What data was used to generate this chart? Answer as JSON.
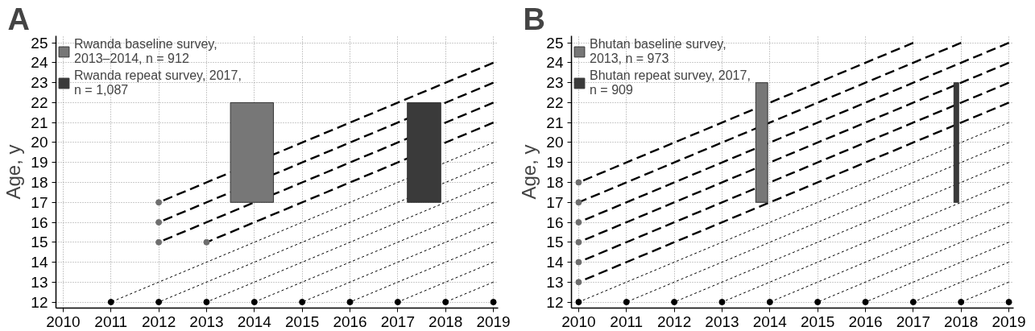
{
  "chart_data": [
    {
      "type": "line",
      "title": "A",
      "ylabel": "Age, y",
      "xlim": [
        2009.85,
        2019.1
      ],
      "ylim": [
        11.7,
        25.35
      ],
      "xticks": [
        2010,
        2011,
        2012,
        2013,
        2014,
        2015,
        2016,
        2017,
        2018,
        2019
      ],
      "yticks": [
        12,
        13,
        14,
        15,
        16,
        17,
        18,
        19,
        20,
        21,
        22,
        23,
        24,
        25
      ],
      "grid": true,
      "legend": "top left",
      "series": [
        {
          "color": "#000000",
          "line_style": "dashed",
          "x": [
            2012,
            2019
          ],
          "values": [
            17,
            24
          ]
        },
        {
          "color": "#000000",
          "line_style": "dashed",
          "x": [
            2012,
            2019
          ],
          "values": [
            16,
            23
          ]
        },
        {
          "color": "#000000",
          "line_style": "dashed",
          "x": [
            2012,
            2019
          ],
          "values": [
            15,
            22
          ]
        },
        {
          "color": "#000000",
          "line_style": "dashed",
          "x": [
            2013,
            2019
          ],
          "values": [
            15,
            21
          ]
        },
        {
          "color": "#000000",
          "line_style": "dotted",
          "x": [
            2011,
            2019
          ],
          "values": [
            12,
            20
          ]
        },
        {
          "color": "#000000",
          "line_style": "dotted",
          "x": [
            2012,
            2019
          ],
          "values": [
            12,
            19
          ]
        },
        {
          "color": "#000000",
          "line_style": "dotted",
          "x": [
            2013,
            2019
          ],
          "values": [
            12,
            18
          ]
        },
        {
          "color": "#000000",
          "line_style": "dotted",
          "x": [
            2014,
            2019
          ],
          "values": [
            12,
            17
          ]
        },
        {
          "color": "#000000",
          "line_style": "dotted",
          "x": [
            2015,
            2019
          ],
          "values": [
            12,
            16
          ]
        },
        {
          "color": "#000000",
          "line_style": "dotted",
          "x": [
            2016,
            2019
          ],
          "values": [
            12,
            15
          ]
        },
        {
          "color": "#000000",
          "line_style": "dotted",
          "x": [
            2017,
            2019
          ],
          "values": [
            12,
            14
          ]
        },
        {
          "color": "#000000",
          "line_style": "dotted",
          "x": [
            2018,
            2019
          ],
          "values": [
            12,
            13
          ]
        },
        {
          "type": "bar",
          "name": "Rwanda baseline survey, 2013–2014, n = 912",
          "color": "#777777",
          "x": [
            2013.95
          ],
          "base": [
            17
          ],
          "values": [
            5
          ]
        },
        {
          "type": "bar",
          "name": "Rwanda repeat survey, 2017, n = 1,087",
          "color": "#3a3a3a",
          "x": [
            2017.55
          ],
          "base": [
            17
          ],
          "values": [
            5
          ]
        },
        {
          "type": "scatter",
          "color": "#6e6e6e",
          "marker": "circle",
          "x": [
            2012,
            2012,
            2012,
            2013
          ],
          "values": [
            17,
            16,
            15,
            15
          ]
        },
        {
          "type": "scatter",
          "color": "#000000",
          "marker": "circle",
          "x": [
            2011,
            2012,
            2013,
            2014,
            2015,
            2016,
            2017,
            2018,
            2019
          ],
          "values": [
            12,
            12,
            12,
            12,
            12,
            12,
            12,
            12,
            12
          ]
        }
      ]
    },
    {
      "type": "line",
      "title": "B",
      "ylabel": "Age, y",
      "xlim": [
        2009.85,
        2019.1
      ],
      "ylim": [
        11.7,
        25.35
      ],
      "xticks": [
        2010,
        2011,
        2012,
        2013,
        2014,
        2015,
        2016,
        2017,
        2018,
        2019
      ],
      "yticks": [
        12,
        13,
        14,
        15,
        16,
        17,
        18,
        19,
        20,
        21,
        22,
        23,
        24,
        25
      ],
      "grid": true,
      "legend": "top left",
      "series": [
        {
          "color": "#000000",
          "line_style": "dashed",
          "x": [
            2010,
            2017
          ],
          "values": [
            18,
            25
          ]
        },
        {
          "color": "#000000",
          "line_style": "dashed",
          "x": [
            2010,
            2018
          ],
          "values": [
            17,
            25
          ]
        },
        {
          "color": "#000000",
          "line_style": "dashed",
          "x": [
            2010,
            2019
          ],
          "values": [
            16,
            25
          ]
        },
        {
          "color": "#000000",
          "line_style": "dashed",
          "x": [
            2010,
            2019
          ],
          "values": [
            15,
            24
          ]
        },
        {
          "color": "#000000",
          "line_style": "dashed",
          "x": [
            2010,
            2019
          ],
          "values": [
            14,
            23
          ]
        },
        {
          "color": "#000000",
          "line_style": "dashed",
          "x": [
            2010,
            2019
          ],
          "values": [
            13,
            22
          ]
        },
        {
          "color": "#000000",
          "line_style": "dotted",
          "x": [
            2010,
            2019
          ],
          "values": [
            12,
            21
          ]
        },
        {
          "color": "#000000",
          "line_style": "dotted",
          "x": [
            2011,
            2019
          ],
          "values": [
            12,
            20
          ]
        },
        {
          "color": "#000000",
          "line_style": "dotted",
          "x": [
            2012,
            2019
          ],
          "values": [
            12,
            19
          ]
        },
        {
          "color": "#000000",
          "line_style": "dotted",
          "x": [
            2013,
            2019
          ],
          "values": [
            12,
            18
          ]
        },
        {
          "color": "#000000",
          "line_style": "dotted",
          "x": [
            2014,
            2019
          ],
          "values": [
            12,
            17
          ]
        },
        {
          "color": "#000000",
          "line_style": "dotted",
          "x": [
            2015,
            2019
          ],
          "values": [
            12,
            16
          ]
        },
        {
          "color": "#000000",
          "line_style": "dotted",
          "x": [
            2016,
            2019
          ],
          "values": [
            12,
            15
          ]
        },
        {
          "color": "#000000",
          "line_style": "dotted",
          "x": [
            2017,
            2019
          ],
          "values": [
            12,
            14
          ]
        },
        {
          "color": "#000000",
          "line_style": "dotted",
          "x": [
            2018,
            2019
          ],
          "values": [
            12,
            13
          ]
        },
        {
          "type": "bar",
          "name": "Bhutan baseline survey, 2013, n = 973",
          "color": "#777777",
          "x": [
            2013.83
          ],
          "base": [
            17
          ],
          "values": [
            6
          ]
        },
        {
          "type": "bar",
          "name": "Bhutan repeat survey, 2017, n = 909",
          "color": "#3a3a3a",
          "x": [
            2017.9
          ],
          "base": [
            17
          ],
          "values": [
            6
          ]
        },
        {
          "type": "scatter",
          "color": "#6e6e6e",
          "marker": "circle",
          "x": [
            2010,
            2010,
            2010,
            2010,
            2010,
            2010
          ],
          "values": [
            18,
            17,
            16,
            15,
            14,
            13
          ]
        },
        {
          "type": "scatter",
          "color": "#000000",
          "marker": "circle",
          "x": [
            2010,
            2011,
            2012,
            2013,
            2014,
            2015,
            2016,
            2017,
            2018,
            2019
          ],
          "values": [
            12,
            12,
            12,
            12,
            12,
            12,
            12,
            12,
            12,
            12
          ]
        }
      ]
    }
  ]
}
